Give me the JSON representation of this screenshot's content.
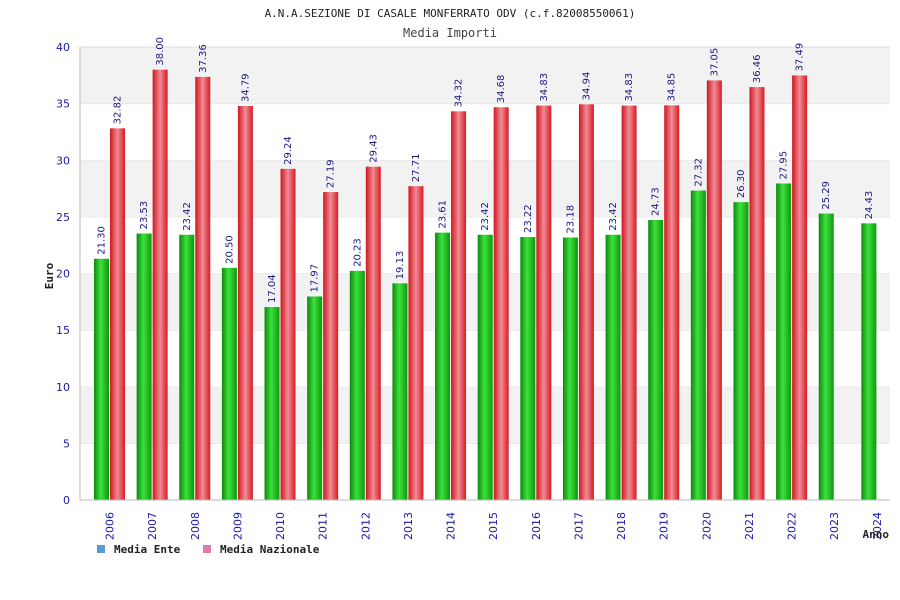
{
  "chart_data": {
    "type": "bar",
    "title": "A.N.A.SEZIONE DI CASALE MONFERRATO ODV (c.f.82008550061)",
    "subtitle": "Media Importi",
    "xlabel": "Anno",
    "ylabel": "Euro",
    "ylim": [
      0,
      40
    ],
    "yticks": [
      "0",
      "5",
      "10",
      "15",
      "20",
      "25",
      "30",
      "35",
      "40"
    ],
    "categories": [
      "2006",
      "2007",
      "2008",
      "2009",
      "2010",
      "2011",
      "2012",
      "2013",
      "2014",
      "2015",
      "2016",
      "2017",
      "2018",
      "2019",
      "2020",
      "2021",
      "2022",
      "2023",
      "2024"
    ],
    "series": [
      {
        "name": "Media Ente",
        "color": "#13b913",
        "legend_color": "#5b9bd5",
        "values": [
          21.3,
          23.53,
          23.42,
          20.5,
          17.04,
          17.97,
          20.23,
          19.13,
          23.61,
          23.42,
          23.22,
          23.18,
          23.42,
          24.73,
          27.32,
          26.3,
          27.95,
          25.29,
          24.43
        ],
        "labels": [
          "21.30",
          "23.53",
          "23.42",
          "20.50",
          "17.04",
          "17.97",
          "20.23",
          "19.13",
          "23.61",
          "23.42",
          "23.22",
          "23.18",
          "23.42",
          "24.73",
          "27.32",
          "26.30",
          "27.95",
          "25.29",
          "24.43"
        ]
      },
      {
        "name": "Media Nazionale",
        "color": "#e8242e",
        "legend_color": "#e07aa8",
        "values": [
          32.82,
          38.0,
          37.36,
          34.79,
          29.24,
          27.19,
          29.43,
          27.71,
          34.32,
          34.68,
          34.83,
          34.94,
          34.83,
          34.85,
          37.05,
          36.46,
          37.49,
          null,
          null
        ],
        "labels": [
          "32.82",
          "38.00",
          "37.36",
          "34.79",
          "29.24",
          "27.19",
          "29.43",
          "27.71",
          "34.32",
          "34.68",
          "34.83",
          "34.94",
          "34.83",
          "34.85",
          "37.05",
          "36.46",
          "37.49",
          null,
          null
        ]
      }
    ],
    "grid": true,
    "legend": "bottom-left"
  }
}
